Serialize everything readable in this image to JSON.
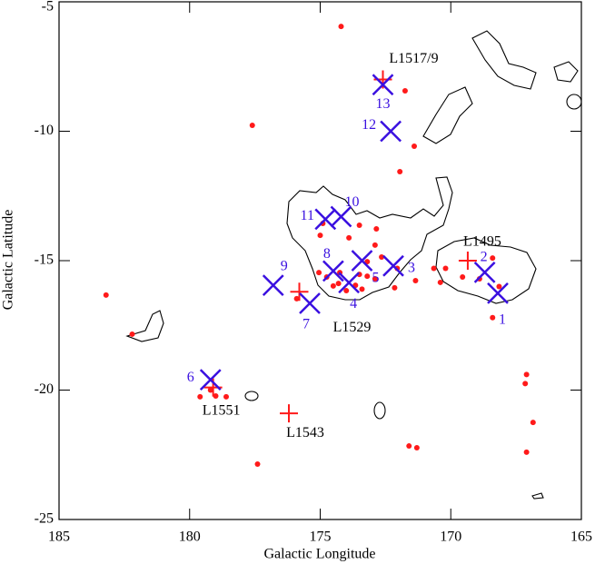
{
  "chart_data": {
    "type": "scatter",
    "x_label": "Galactic Longitude",
    "y_label": "Galactic Latitude",
    "xlim": [
      185,
      165
    ],
    "ylim": [
      -25,
      -5
    ],
    "xticks": [
      185,
      180,
      175,
      170,
      165
    ],
    "yticks": [
      -5,
      -10,
      -15,
      -20,
      -25
    ],
    "series": [
      {
        "marker": "dot",
        "color": "#ff1a1a",
        "x": [
          174.2,
          177.6,
          171.75,
          171.4,
          171.95,
          183.2,
          182.2,
          177.4,
          171.6,
          171.3,
          167.1,
          166.85,
          167.1,
          167.15,
          168.4,
          179.6,
          179.0,
          178.6,
          179.2,
          174.9,
          173.5,
          173.9,
          175.0,
          172.9,
          172.65,
          172.05,
          174.25,
          174.3,
          173.65,
          173.4,
          174.0,
          172.9,
          172.15,
          171.35,
          170.65,
          170.2,
          170.4,
          169.55,
          168.9,
          168.4,
          168.15,
          175.9,
          175.05,
          174.5,
          174.75,
          173.5,
          173.2,
          172.85,
          173.2
        ],
        "y": [
          -5.95,
          -9.77,
          -8.44,
          -10.58,
          -11.56,
          -16.33,
          -17.84,
          -22.86,
          -22.16,
          -22.23,
          -22.4,
          -21.25,
          -19.4,
          -19.75,
          -17.2,
          -20.26,
          -20.23,
          -20.26,
          -20.0,
          -13.56,
          -13.63,
          -14.12,
          -14.02,
          -14.4,
          -14.86,
          -15.3,
          -15.46,
          -15.88,
          -15.95,
          -16.1,
          -16.16,
          -15.7,
          -16.05,
          -15.77,
          -15.3,
          -15.3,
          -15.84,
          -15.63,
          -15.7,
          -14.9,
          -16.0,
          -16.47,
          -15.46,
          -15.98,
          -15.63,
          -15.53,
          -15.6,
          -13.77,
          -15.04
        ]
      },
      {
        "marker": "plus",
        "color": "#ff1a1a",
        "x": [
          172.6,
          169.35,
          175.8,
          179.1,
          176.2
        ],
        "y": [
          -8.0,
          -15.0,
          -16.2,
          -19.9,
          -20.9
        ],
        "labels": [
          "L1517/9",
          "L1495",
          "L1529",
          "L1551",
          "L1543"
        ]
      },
      {
        "marker": "x",
        "color": "#3a10e0",
        "x": [
          168.2,
          168.7,
          172.2,
          173.9,
          173.4,
          179.2,
          175.4,
          174.5,
          176.8,
          174.2,
          174.8,
          172.3,
          172.6
        ],
        "y": [
          -16.26,
          -15.45,
          -15.2,
          -15.85,
          -15.0,
          -19.6,
          -16.65,
          -15.4,
          -15.95,
          -13.3,
          -13.4,
          -10.0,
          -8.2
        ],
        "labels": [
          "1",
          "2",
          "3",
          "4",
          "5",
          "6",
          "7",
          "8",
          "9",
          "10",
          "11",
          "12",
          "13"
        ]
      }
    ]
  }
}
